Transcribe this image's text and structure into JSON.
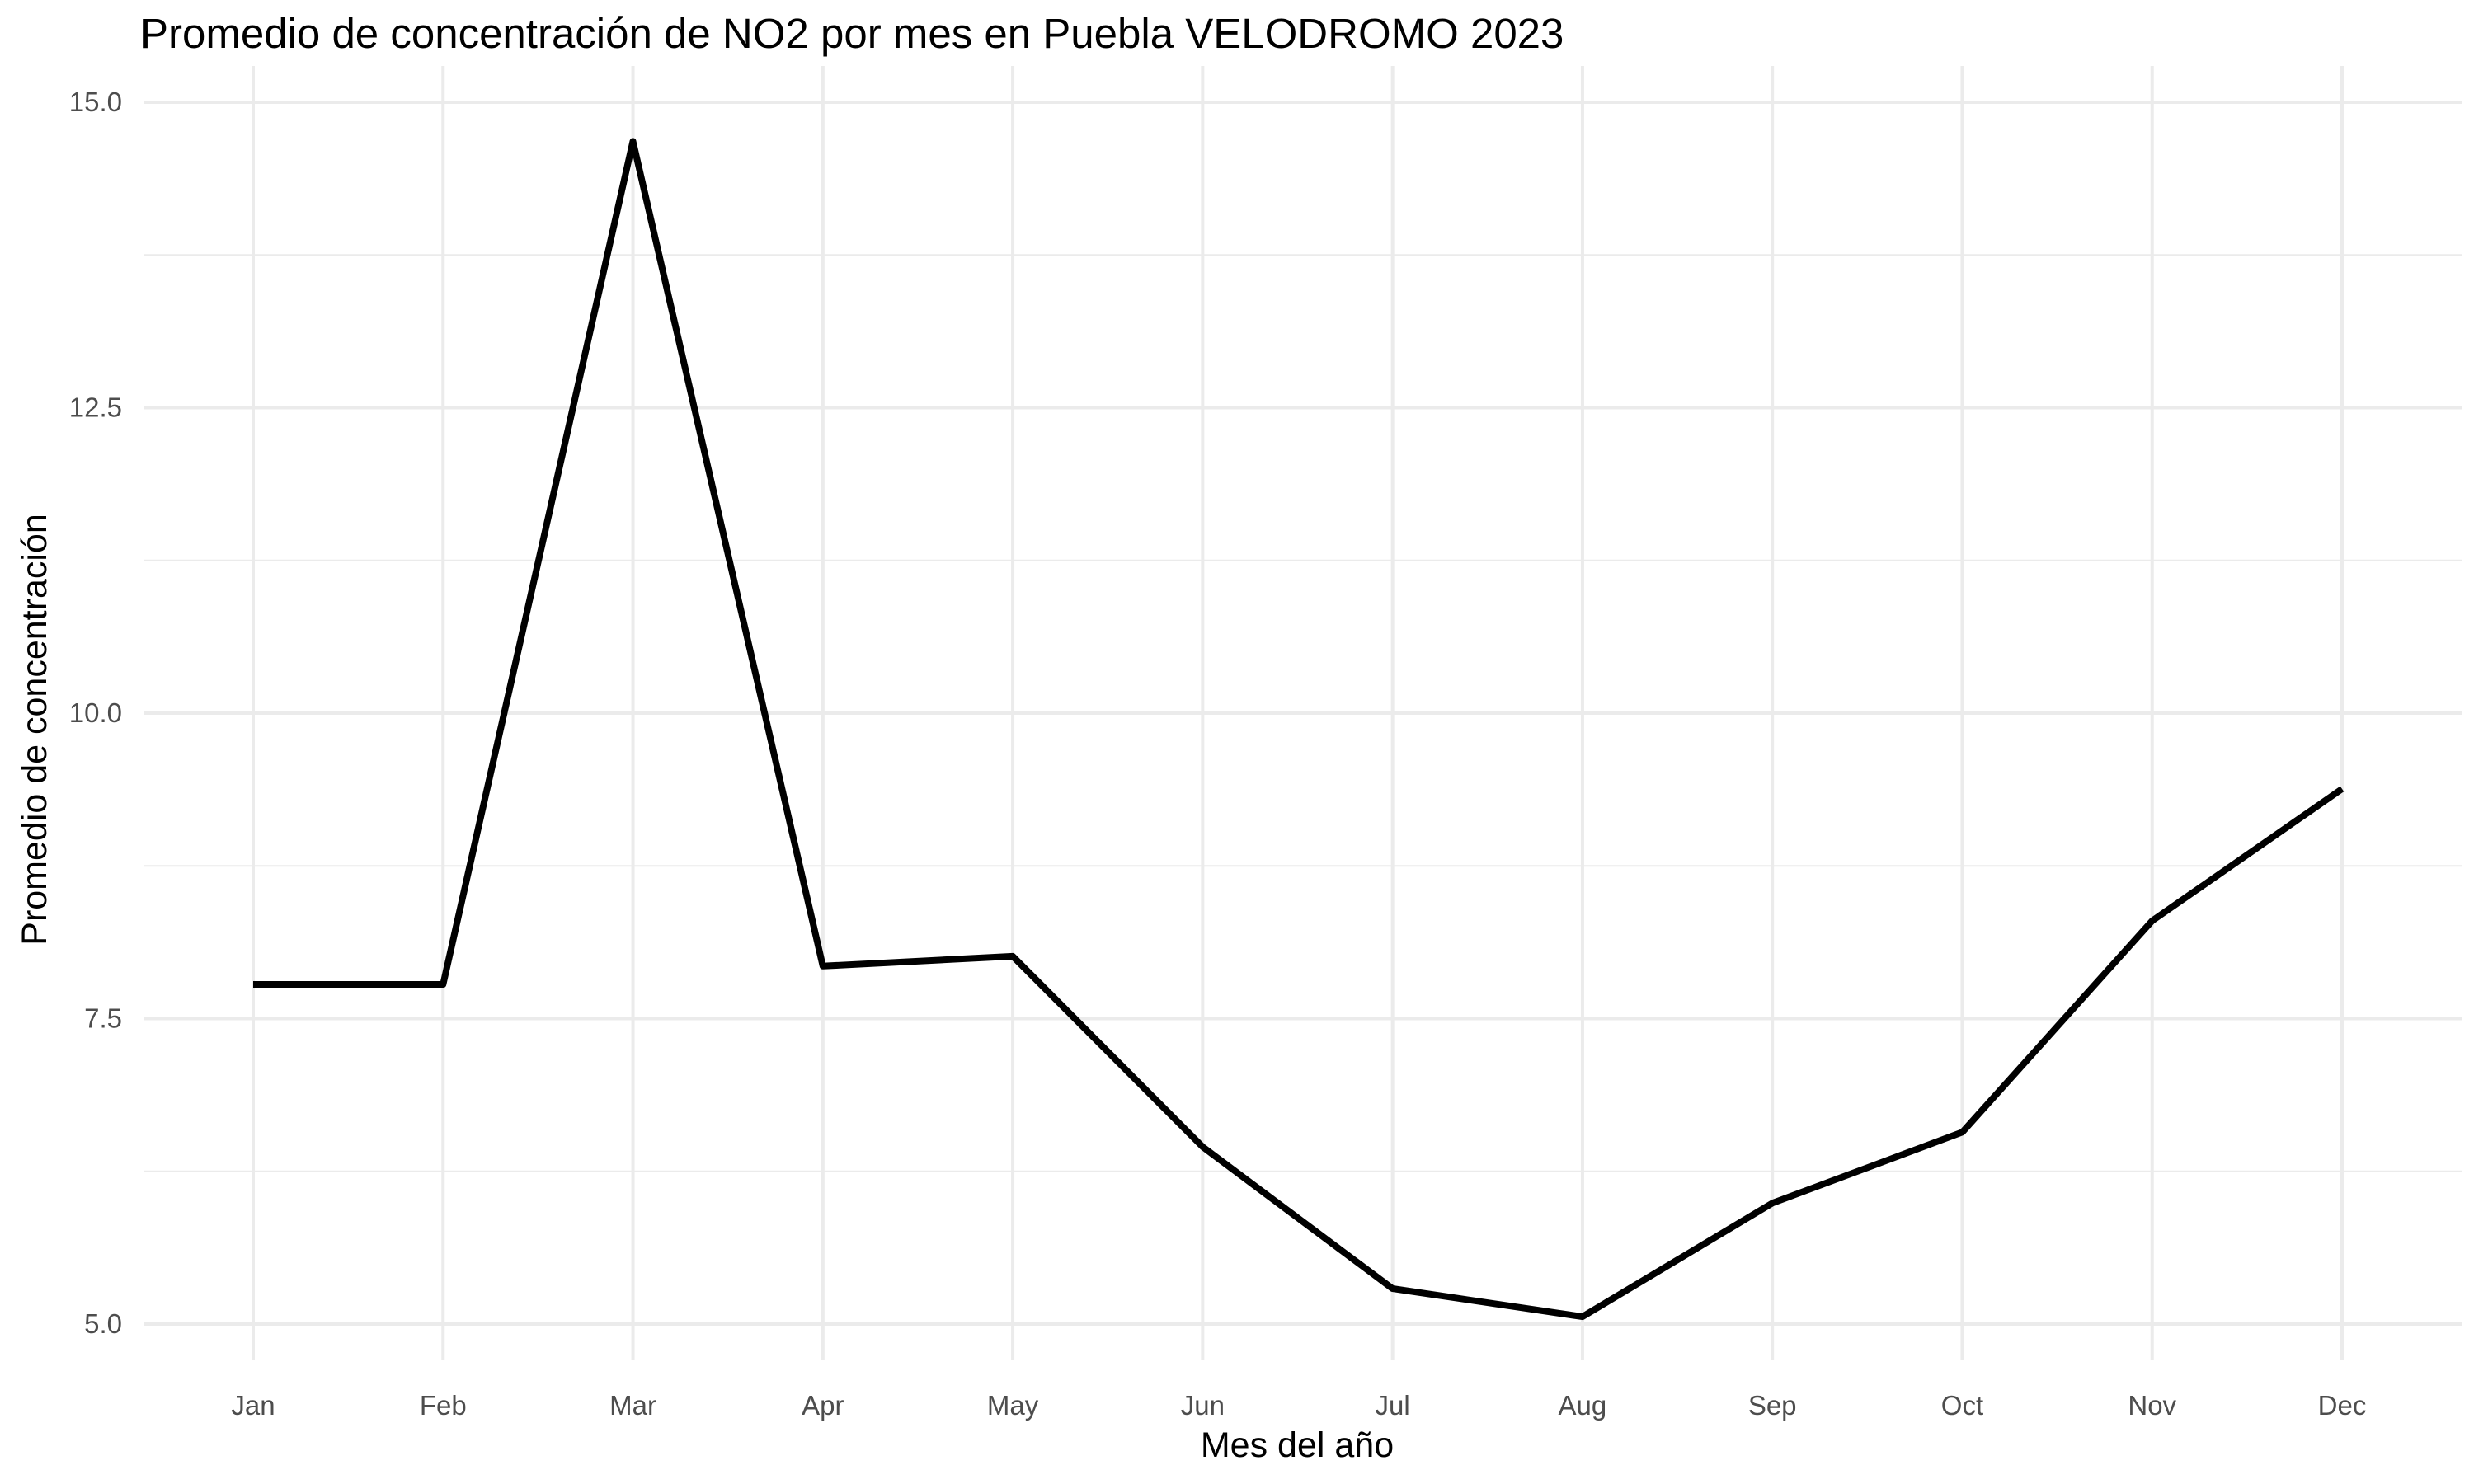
{
  "chart_data": {
    "type": "line",
    "title": "Promedio de concentración de NO2 por mes en Puebla VELODROMO 2023",
    "xlabel": "Mes del año",
    "ylabel": "Promedio de concentración",
    "categories": [
      "Jan",
      "Feb",
      "Mar",
      "Apr",
      "May",
      "Jun",
      "Jul",
      "Aug",
      "Sep",
      "Oct",
      "Nov",
      "Dec"
    ],
    "series": [
      {
        "values": [
          7.78,
          7.78,
          14.68,
          7.93,
          8.01,
          6.45,
          5.29,
          5.06,
          5.99,
          6.57,
          8.3,
          9.38
        ]
      }
    ],
    "ylim": [
      5.0,
      15.0
    ],
    "yticks": [
      5.0,
      7.5,
      10.0,
      12.5,
      15.0
    ],
    "ytick_labels": [
      "5.0",
      "7.5",
      "10.0",
      "12.5",
      "15.0"
    ],
    "grid": true,
    "legend": "none",
    "colors": {
      "line": "#000000",
      "grid": "#ebebeb",
      "background": "#ffffff"
    }
  }
}
